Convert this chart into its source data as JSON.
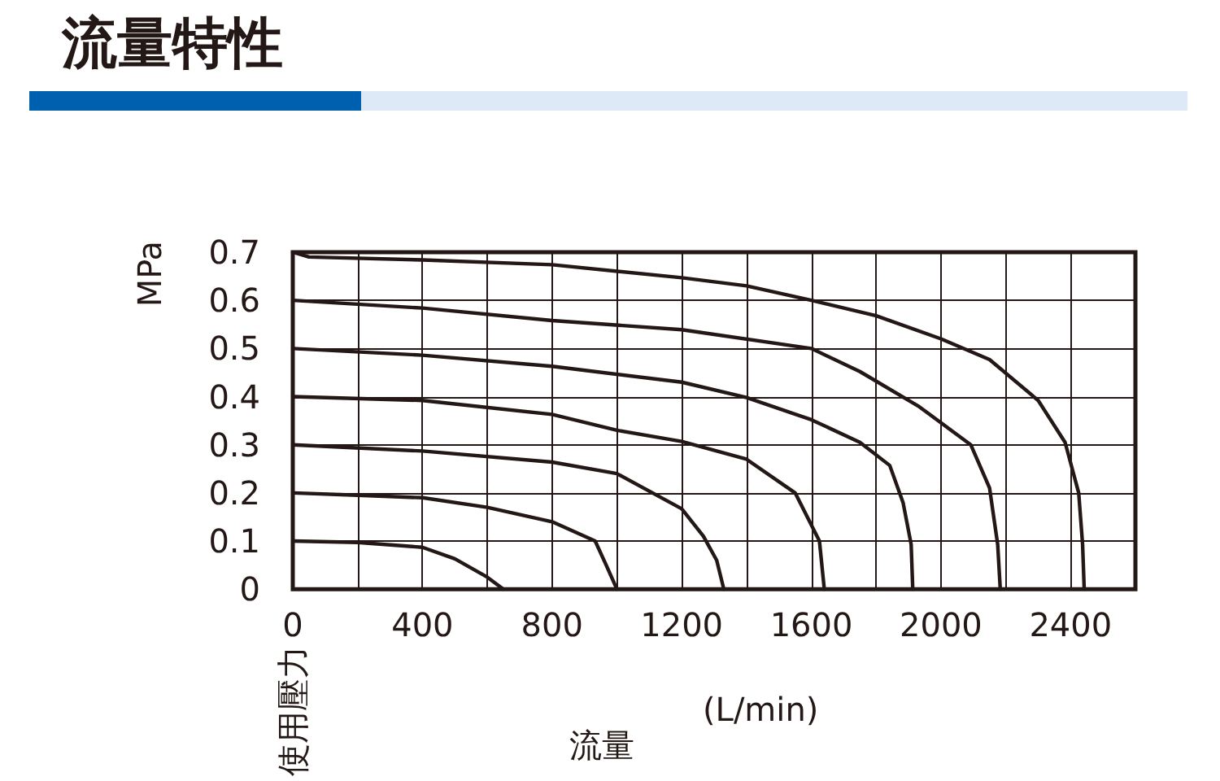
{
  "chart_data": {
    "type": "line",
    "title": "流量特性",
    "xlabel": "流量",
    "ylabel": "使用壓力",
    "annotations": [
      "MPa",
      "(L/min)"
    ],
    "xlim": [
      0,
      2600
    ],
    "ylim": [
      0,
      0.7
    ],
    "xticks": [
      0,
      {
        "value": 200,
        "label": null
      },
      400,
      {
        "value": 600,
        "label": null
      },
      800,
      {
        "value": 1000,
        "label": null
      },
      1200,
      {
        "value": 1400,
        "label": null
      },
      1600,
      {
        "value": 1800,
        "label": null
      },
      2000,
      {
        "value": 2200,
        "label": null
      },
      2400
    ],
    "yticks": [
      0,
      0.1,
      0.2,
      0.3,
      0.4,
      0.5,
      0.6,
      0.7
    ],
    "grid": true,
    "marker": "none",
    "line_style": "solid",
    "series": [
      {
        "color": "#231815",
        "x": [
          0,
          200,
          400,
          500,
          600,
          650
        ],
        "values": [
          0.1,
          0.097,
          0.087,
          0.063,
          0.025,
          0
        ]
      },
      {
        "color": "#231815",
        "x": [
          0,
          200,
          400,
          600,
          800,
          933,
          967,
          1000
        ],
        "values": [
          0.2,
          0.195,
          0.19,
          0.17,
          0.14,
          0.1,
          0.05,
          0
        ]
      },
      {
        "color": "#231815",
        "x": [
          0,
          400,
          800,
          1000,
          1200,
          1267,
          1308,
          1330
        ],
        "values": [
          0.3,
          0.287,
          0.264,
          0.24,
          0.167,
          0.11,
          0.06,
          0
        ]
      },
      {
        "color": "#231815",
        "x": [
          0,
          400,
          800,
          1000,
          1200,
          1400,
          1550,
          1625,
          1640
        ],
        "values": [
          0.4,
          0.392,
          0.363,
          0.33,
          0.307,
          0.27,
          0.2,
          0.1,
          0
        ]
      },
      {
        "color": "#231815",
        "x": [
          0,
          400,
          800,
          1200,
          1400,
          1600,
          1750,
          1842,
          1883,
          1908,
          1913
        ],
        "values": [
          0.5,
          0.486,
          0.463,
          0.43,
          0.398,
          0.352,
          0.305,
          0.257,
          0.18,
          0.093,
          0
        ]
      },
      {
        "color": "#231815",
        "x": [
          0,
          400,
          800,
          1200,
          1600,
          1750,
          1933,
          2092,
          2150,
          2175,
          2183
        ],
        "values": [
          0.6,
          0.584,
          0.558,
          0.539,
          0.5,
          0.452,
          0.379,
          0.3,
          0.21,
          0.093,
          0
        ]
      },
      {
        "color": "#231815",
        "x": [
          0,
          50,
          400,
          800,
          1200,
          1400,
          1600,
          1800,
          2000,
          2150,
          2300,
          2383,
          2425,
          2437,
          2442
        ],
        "values": [
          0.7,
          0.69,
          0.684,
          0.674,
          0.647,
          0.63,
          0.6,
          0.568,
          0.52,
          0.477,
          0.392,
          0.305,
          0.2,
          0.093,
          0
        ]
      }
    ]
  }
}
